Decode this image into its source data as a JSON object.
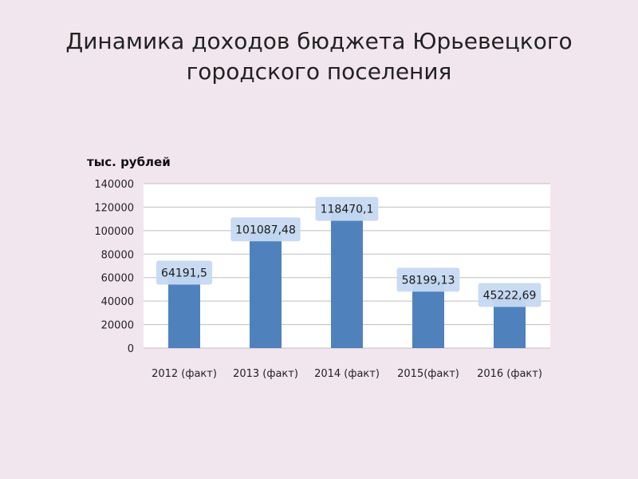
{
  "title_line1": "Динамика доходов бюджета Юрьевецкого",
  "title_line2": "городского поселения",
  "colors": {
    "background": "#f2e6ee",
    "plot_background": "#ffffff",
    "bar": "#4f81bd",
    "gridline": "#bfbfbf",
    "data_label_fill": "#c6d9f1"
  },
  "chart_data": {
    "type": "bar",
    "title": "",
    "ylabel": "тыс. рублей",
    "xlabel": "",
    "categories": [
      "2012 (факт)",
      "2013 (факт)",
      "2014 (факт)",
      "2015(факт)",
      "2016 (факт)"
    ],
    "values": [
      64191.5,
      101087.48,
      118470.1,
      58199.13,
      45222.69
    ],
    "value_labels": [
      "64191,5",
      "101087,48",
      "118470,1",
      "58199,13",
      "45222,69"
    ],
    "ylim": [
      0,
      140000
    ],
    "yticks": [
      0,
      20000,
      40000,
      60000,
      80000,
      100000,
      120000,
      140000
    ],
    "ytick_labels": [
      "0",
      "20000",
      "40000",
      "60000",
      "80000",
      "100000",
      "120000",
      "140000"
    ],
    "grid": true,
    "legend": "none"
  }
}
